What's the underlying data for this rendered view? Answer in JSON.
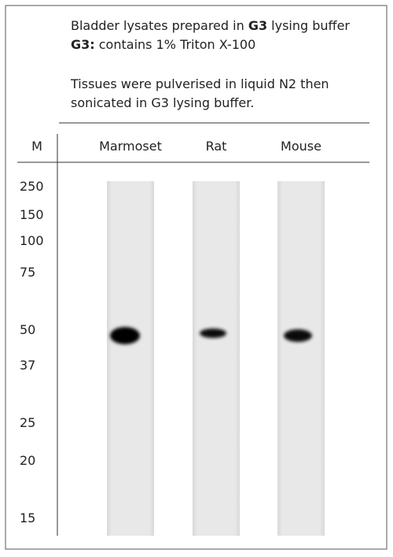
{
  "notes": [
    [
      {
        "text": "Bladder lysates prepared in "
      },
      {
        "text": "G3",
        "bold": true
      },
      {
        "text": " lysing buffer"
      }
    ],
    [
      {
        "text": "G3:",
        "bold": true
      },
      {
        "text": " contains 1% Triton X-100"
      }
    ],
    [
      {
        "text": "Tissues were pulverised in liquid N2 then"
      }
    ],
    [
      {
        "text": "sonicated in G3 lysing buffer."
      }
    ]
  ],
  "marker_header": "M",
  "lanes": [
    "Marmoset",
    "Rat",
    "Mouse"
  ],
  "markers": [
    "250",
    "150",
    "100",
    "75",
    "50",
    "37",
    "25",
    "20",
    "15"
  ]
}
